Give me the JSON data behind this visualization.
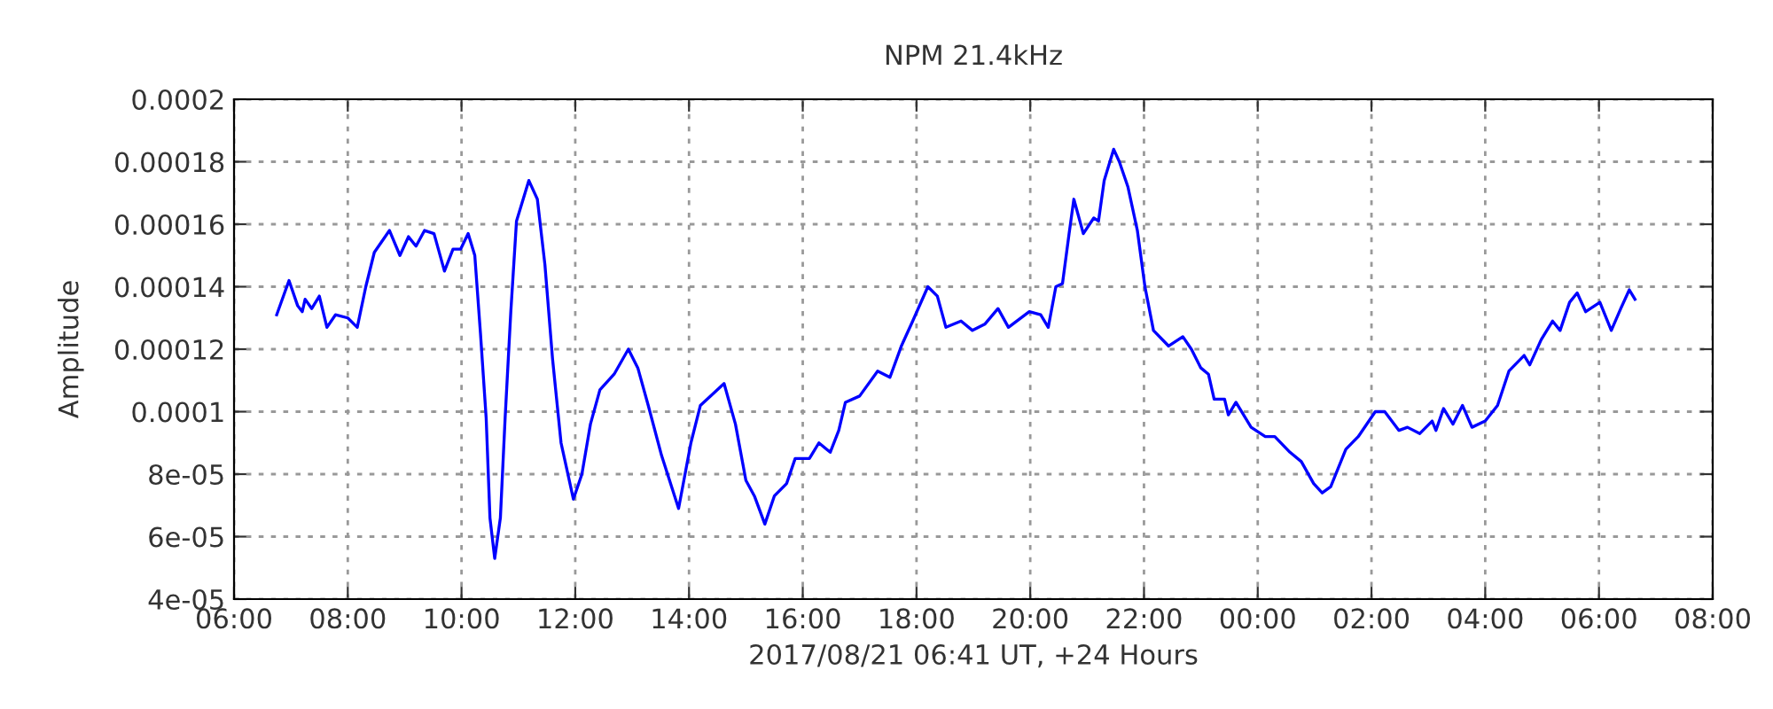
{
  "chart_data": {
    "type": "line",
    "title": "NPM 21.4kHz",
    "xlabel": "2017/08/21 06:41 UT, +24 Hours",
    "ylabel": "Amplitude",
    "grid": true,
    "marker": "none",
    "line_style": "solid",
    "xlim": [
      "2017-08-21T06:00",
      "2017-08-22T08:00"
    ],
    "ylim": [
      4e-05,
      0.0002
    ],
    "xticks": [
      {
        "value": "2017-08-21T06:00",
        "label": "06:00"
      },
      {
        "value": "2017-08-21T08:00",
        "label": "08:00"
      },
      {
        "value": "2017-08-21T10:00",
        "label": "10:00"
      },
      {
        "value": "2017-08-21T12:00",
        "label": "12:00"
      },
      {
        "value": "2017-08-21T14:00",
        "label": "14:00"
      },
      {
        "value": "2017-08-21T16:00",
        "label": "16:00"
      },
      {
        "value": "2017-08-21T18:00",
        "label": "18:00"
      },
      {
        "value": "2017-08-21T20:00",
        "label": "20:00"
      },
      {
        "value": "2017-08-21T22:00",
        "label": "22:00"
      },
      {
        "value": "2017-08-22T00:00",
        "label": "00:00"
      },
      {
        "value": "2017-08-22T02:00",
        "label": "02:00"
      },
      {
        "value": "2017-08-22T04:00",
        "label": "04:00"
      },
      {
        "value": "2017-08-22T06:00",
        "label": "06:00"
      },
      {
        "value": "2017-08-22T08:00",
        "label": "08:00"
      }
    ],
    "yticks": [
      4e-05,
      6e-05,
      8e-05,
      0.0001,
      0.00012,
      0.00014,
      0.00016,
      0.00018,
      0.0002
    ],
    "series": [
      {
        "color": "#0000ff",
        "x": [
          "2017-08-21T06:45",
          "2017-08-21T06:58",
          "2017-08-21T07:07",
          "2017-08-21T07:12",
          "2017-08-21T07:15",
          "2017-08-21T07:22",
          "2017-08-21T07:30",
          "2017-08-21T07:38",
          "2017-08-21T07:47",
          "2017-08-21T08:00",
          "2017-08-21T08:10",
          "2017-08-21T08:19",
          "2017-08-21T08:28",
          "2017-08-21T08:44",
          "2017-08-21T08:55",
          "2017-08-21T09:04",
          "2017-08-21T09:12",
          "2017-08-21T09:21",
          "2017-08-21T09:31",
          "2017-08-21T09:42",
          "2017-08-21T09:51",
          "2017-08-21T09:59",
          "2017-08-21T10:07",
          "2017-08-21T10:14",
          "2017-08-21T10:20",
          "2017-08-21T10:26",
          "2017-08-21T10:30",
          "2017-08-21T10:35",
          "2017-08-21T10:41",
          "2017-08-21T10:46",
          "2017-08-21T10:52",
          "2017-08-21T10:58",
          "2017-08-21T11:11",
          "2017-08-21T11:20",
          "2017-08-21T11:28",
          "2017-08-21T11:36",
          "2017-08-21T11:45",
          "2017-08-21T11:58",
          "2017-08-21T12:07",
          "2017-08-21T12:16",
          "2017-08-21T12:26",
          "2017-08-21T12:41",
          "2017-08-21T12:56",
          "2017-08-21T13:06",
          "2017-08-21T13:17",
          "2017-08-21T13:31",
          "2017-08-21T13:49",
          "2017-08-21T14:02",
          "2017-08-21T14:12",
          "2017-08-21T14:37",
          "2017-08-21T14:49",
          "2017-08-21T15:00",
          "2017-08-21T15:09",
          "2017-08-21T15:20",
          "2017-08-21T15:30",
          "2017-08-21T15:43",
          "2017-08-21T15:52",
          "2017-08-21T16:07",
          "2017-08-21T16:17",
          "2017-08-21T16:29",
          "2017-08-21T16:38",
          "2017-08-21T16:45",
          "2017-08-21T17:00",
          "2017-08-21T17:19",
          "2017-08-21T17:32",
          "2017-08-21T17:44",
          "2017-08-21T17:56",
          "2017-08-21T18:12",
          "2017-08-21T18:22",
          "2017-08-21T18:31",
          "2017-08-21T18:47",
          "2017-08-21T18:59",
          "2017-08-21T19:12",
          "2017-08-21T19:26",
          "2017-08-21T19:37",
          "2017-08-21T19:59",
          "2017-08-21T20:11",
          "2017-08-21T20:19",
          "2017-08-21T20:27",
          "2017-08-21T20:34",
          "2017-08-21T20:41",
          "2017-08-21T20:46",
          "2017-08-21T20:56",
          "2017-08-21T21:07",
          "2017-08-21T21:12",
          "2017-08-21T21:18",
          "2017-08-21T21:28",
          "2017-08-21T21:34",
          "2017-08-21T21:43",
          "2017-08-21T21:53",
          "2017-08-21T22:01",
          "2017-08-21T22:10",
          "2017-08-21T22:26",
          "2017-08-21T22:41",
          "2017-08-21T22:50",
          "2017-08-21T23:00",
          "2017-08-21T23:08",
          "2017-08-21T23:14",
          "2017-08-21T23:25",
          "2017-08-21T23:29",
          "2017-08-21T23:37",
          "2017-08-21T23:53",
          "2017-08-22T00:08",
          "2017-08-22T00:18",
          "2017-08-22T00:34",
          "2017-08-22T00:46",
          "2017-08-22T00:59",
          "2017-08-22T01:08",
          "2017-08-22T01:17",
          "2017-08-22T01:33",
          "2017-08-22T01:46",
          "2017-08-22T02:04",
          "2017-08-22T02:14",
          "2017-08-22T02:29",
          "2017-08-22T02:38",
          "2017-08-22T02:51",
          "2017-08-22T03:04",
          "2017-08-22T03:08",
          "2017-08-22T03:16",
          "2017-08-22T03:26",
          "2017-08-22T03:36",
          "2017-08-22T03:46",
          "2017-08-22T04:00",
          "2017-08-22T04:13",
          "2017-08-22T04:25",
          "2017-08-22T04:41",
          "2017-08-22T04:47",
          "2017-08-22T04:59",
          "2017-08-22T05:11",
          "2017-08-22T05:19",
          "2017-08-22T05:29",
          "2017-08-22T05:37",
          "2017-08-22T05:46",
          "2017-08-22T06:01",
          "2017-08-22T06:13",
          "2017-08-22T06:23",
          "2017-08-22T06:32",
          "2017-08-22T06:38"
        ],
        "values": [
          0.000131,
          0.000142,
          0.000134,
          0.000132,
          0.000136,
          0.000133,
          0.000137,
          0.000127,
          0.000131,
          0.00013,
          0.000127,
          0.00014,
          0.000151,
          0.000158,
          0.00015,
          0.000156,
          0.000153,
          0.000158,
          0.000157,
          0.000145,
          0.000152,
          0.000152,
          0.000157,
          0.00015,
          0.000125,
          9.8e-05,
          6.6e-05,
          5.3e-05,
          6.6e-05,
          9.8e-05,
          0.000132,
          0.000161,
          0.000174,
          0.000168,
          0.000147,
          0.000117,
          9e-05,
          7.2e-05,
          8e-05,
          9.6e-05,
          0.000107,
          0.000112,
          0.00012,
          0.000114,
          0.000102,
          8.6e-05,
          6.9e-05,
          9e-05,
          0.000102,
          0.000109,
          9.6e-05,
          7.8e-05,
          7.3e-05,
          6.4e-05,
          7.3e-05,
          7.7e-05,
          8.5e-05,
          8.5e-05,
          9e-05,
          8.7e-05,
          9.4e-05,
          0.000103,
          0.000105,
          0.000113,
          0.000111,
          0.000121,
          0.000129,
          0.00014,
          0.000137,
          0.000127,
          0.000129,
          0.000126,
          0.000128,
          0.000133,
          0.000127,
          0.000132,
          0.000131,
          0.000127,
          0.00014,
          0.000141,
          0.000157,
          0.000168,
          0.000157,
          0.000162,
          0.000161,
          0.000174,
          0.000184,
          0.00018,
          0.000172,
          0.000158,
          0.00014,
          0.000126,
          0.000121,
          0.000124,
          0.00012,
          0.000114,
          0.000112,
          0.000104,
          0.000104,
          9.9e-05,
          0.000103,
          9.5e-05,
          9.2e-05,
          9.2e-05,
          8.7e-05,
          8.4e-05,
          7.7e-05,
          7.4e-05,
          7.6e-05,
          8.8e-05,
          9.2e-05,
          0.0001,
          0.0001,
          9.4e-05,
          9.5e-05,
          9.3e-05,
          9.7e-05,
          9.4e-05,
          0.000101,
          9.6e-05,
          0.000102,
          9.5e-05,
          9.7e-05,
          0.000102,
          0.000113,
          0.000118,
          0.000115,
          0.000123,
          0.000129,
          0.000126,
          0.000135,
          0.000138,
          0.000132,
          0.000135,
          0.000126,
          0.000133,
          0.000139,
          0.000136
        ]
      }
    ]
  }
}
